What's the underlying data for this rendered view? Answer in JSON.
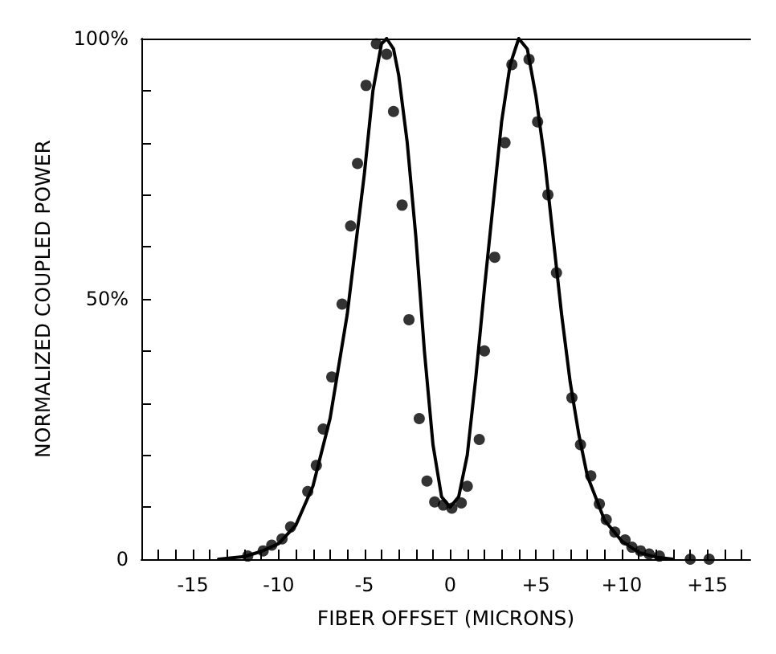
{
  "chart_data": {
    "type": "scatter",
    "xlabel": "FIBER OFFSET (MICRONS)",
    "ylabel": "NORMALIZED COUPLED POWER",
    "xlim": [
      -18,
      17.5
    ],
    "ylim": [
      0,
      100
    ],
    "xticks": [
      {
        "value": -18,
        "label": null
      },
      {
        "value": -17,
        "label": null
      },
      {
        "value": -16,
        "label": null
      },
      {
        "value": -15,
        "label": "-15"
      },
      {
        "value": -14,
        "label": null
      },
      {
        "value": -13,
        "label": null
      },
      {
        "value": -12,
        "label": null
      },
      {
        "value": -11,
        "label": null
      },
      {
        "value": -10,
        "label": "-10"
      },
      {
        "value": -9,
        "label": null
      },
      {
        "value": -8,
        "label": null
      },
      {
        "value": -7,
        "label": null
      },
      {
        "value": -6,
        "label": null
      },
      {
        "value": -5,
        "label": "-5"
      },
      {
        "value": -4,
        "label": null
      },
      {
        "value": -3,
        "label": null
      },
      {
        "value": -2,
        "label": null
      },
      {
        "value": -1,
        "label": null
      },
      {
        "value": 0,
        "label": "0"
      },
      {
        "value": 1,
        "label": null
      },
      {
        "value": 2,
        "label": null
      },
      {
        "value": 3,
        "label": null
      },
      {
        "value": 4,
        "label": null
      },
      {
        "value": 5,
        "label": "+5"
      },
      {
        "value": 6,
        "label": null
      },
      {
        "value": 7,
        "label": null
      },
      {
        "value": 8,
        "label": null
      },
      {
        "value": 9,
        "label": null
      },
      {
        "value": 10,
        "label": "+10"
      },
      {
        "value": 11,
        "label": null
      },
      {
        "value": 12,
        "label": null
      },
      {
        "value": 13,
        "label": null
      },
      {
        "value": 14,
        "label": null
      },
      {
        "value": 15,
        "label": "+15"
      },
      {
        "value": 16,
        "label": null
      },
      {
        "value": 17,
        "label": null
      }
    ],
    "yticks": [
      0,
      {
        "value": 10,
        "label": null
      },
      {
        "value": 20,
        "label": null
      },
      {
        "value": 30,
        "label": null
      },
      {
        "value": 40,
        "label": null
      },
      {
        "value": 50,
        "label": "50%"
      },
      {
        "value": 60,
        "label": null
      },
      {
        "value": 70,
        "label": null
      },
      {
        "value": 80,
        "label": null
      },
      {
        "value": 90,
        "label": null
      },
      {
        "value": 100,
        "label": "100%"
      }
    ],
    "series": [
      {
        "color": "#000000",
        "marker": "circle",
        "x": [
          -11.8,
          -10.9,
          -10.4,
          -9.8,
          -9.3,
          -8.3,
          -7.8,
          -7.4,
          -6.9,
          -6.3,
          -5.8,
          -5.4,
          -4.9,
          -4.3,
          -3.7,
          -3.3,
          -2.8,
          -2.4,
          -1.8,
          -1.35,
          -0.9,
          -0.4,
          0.1,
          0.65,
          1.0,
          1.7,
          2.0,
          2.6,
          3.2,
          3.6,
          4.6,
          5.1,
          5.7,
          6.2,
          7.1,
          7.6,
          8.2,
          8.7,
          9.1,
          9.6,
          10.2,
          10.6,
          11.1,
          11.6,
          12.2,
          14.0,
          15.1
        ],
        "values": [
          0.6,
          1.6,
          2.7,
          3.9,
          6.2,
          13,
          18,
          25,
          35,
          49,
          64,
          76,
          91,
          99,
          97,
          86,
          68,
          46,
          27,
          15,
          11,
          10.4,
          9.8,
          10.8,
          14,
          23,
          40,
          58,
          80,
          95,
          96,
          84,
          70,
          55,
          31,
          22,
          16,
          10.6,
          7.6,
          5.2,
          3.7,
          2.3,
          1.6,
          1.0,
          0.6,
          0,
          0
        ]
      },
      {
        "type": "line",
        "color": "#000000",
        "marker": "none",
        "line_style": "solid",
        "x": [
          -13.5,
          -12,
          -11,
          -10,
          -9,
          -8,
          -7,
          -6,
          -5,
          -4.5,
          -4,
          -3.7,
          -3.3,
          -3,
          -2.5,
          -2,
          -1.5,
          -1,
          -0.5,
          0,
          0.5,
          1,
          1.5,
          2,
          2.5,
          3,
          3.5,
          4,
          4.5,
          5,
          5.5,
          6,
          6.5,
          7,
          7.5,
          8,
          9,
          10,
          11,
          12,
          13
        ],
        "values": [
          0,
          0.5,
          1.5,
          3,
          6.5,
          14,
          27,
          47,
          74,
          90,
          99,
          100,
          98,
          93,
          80,
          62,
          40,
          22,
          12,
          10,
          12,
          20,
          35,
          52,
          68,
          84,
          95,
          100,
          98,
          89,
          77,
          62,
          47,
          34,
          24,
          16,
          7.5,
          3.5,
          1.3,
          0.4,
          0
        ]
      }
    ]
  }
}
